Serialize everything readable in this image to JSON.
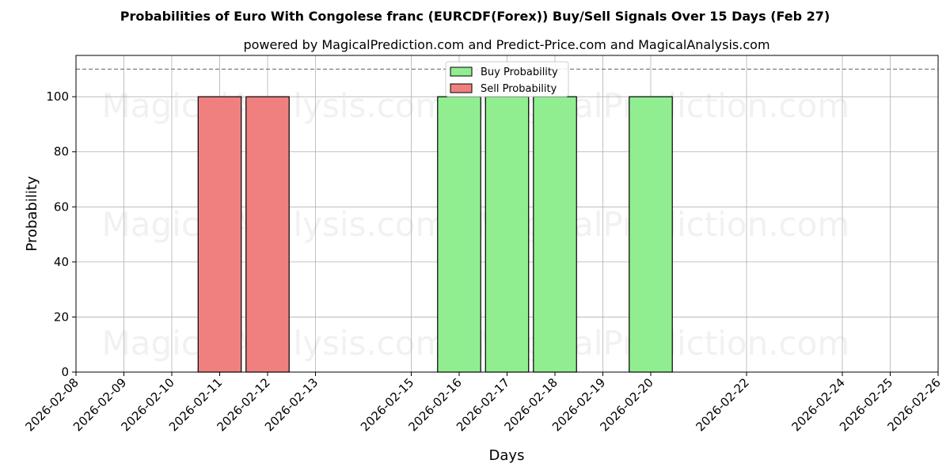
{
  "chart_data": {
    "type": "bar",
    "title": "Probabilities of Euro With Congolese franc (EURCDF(Forex)) Buy/Sell Signals Over 15 Days (Feb 27)",
    "subtitle": "powered by MagicalPrediction.com and Predict-Price.com and MagicalAnalysis.com",
    "xlabel": "Days",
    "ylabel": "Probability",
    "x_range": [
      "2026-02-08",
      "2026-02-26"
    ],
    "ylim": [
      0,
      115
    ],
    "reference_line": 110,
    "x_ticks": [
      "2026-02-08",
      "2026-02-09",
      "2026-02-10",
      "2026-02-11",
      "2026-02-12",
      "2026-02-13",
      "2026-02-15",
      "2026-02-16",
      "2026-02-17",
      "2026-02-18",
      "2026-02-19",
      "2026-02-20",
      "2026-02-22",
      "2026-02-24",
      "2026-02-25",
      "2026-02-26"
    ],
    "y_ticks": [
      0,
      20,
      40,
      60,
      80,
      100
    ],
    "grid": true,
    "legend_position": "top-center",
    "series": [
      {
        "name": "Buy Probability",
        "color": "#90ee90",
        "points": [
          {
            "x": "2026-02-16",
            "y": 100
          },
          {
            "x": "2026-02-17",
            "y": 100
          },
          {
            "x": "2026-02-18",
            "y": 100
          },
          {
            "x": "2026-02-20",
            "y": 100
          }
        ]
      },
      {
        "name": "Sell Probability",
        "color": "#f08080",
        "points": [
          {
            "x": "2026-02-11",
            "y": 100
          },
          {
            "x": "2026-02-12",
            "y": 100
          }
        ]
      }
    ]
  },
  "watermarks": [
    "MagicalAnalysis.com",
    "MagicalPrediction.com"
  ]
}
